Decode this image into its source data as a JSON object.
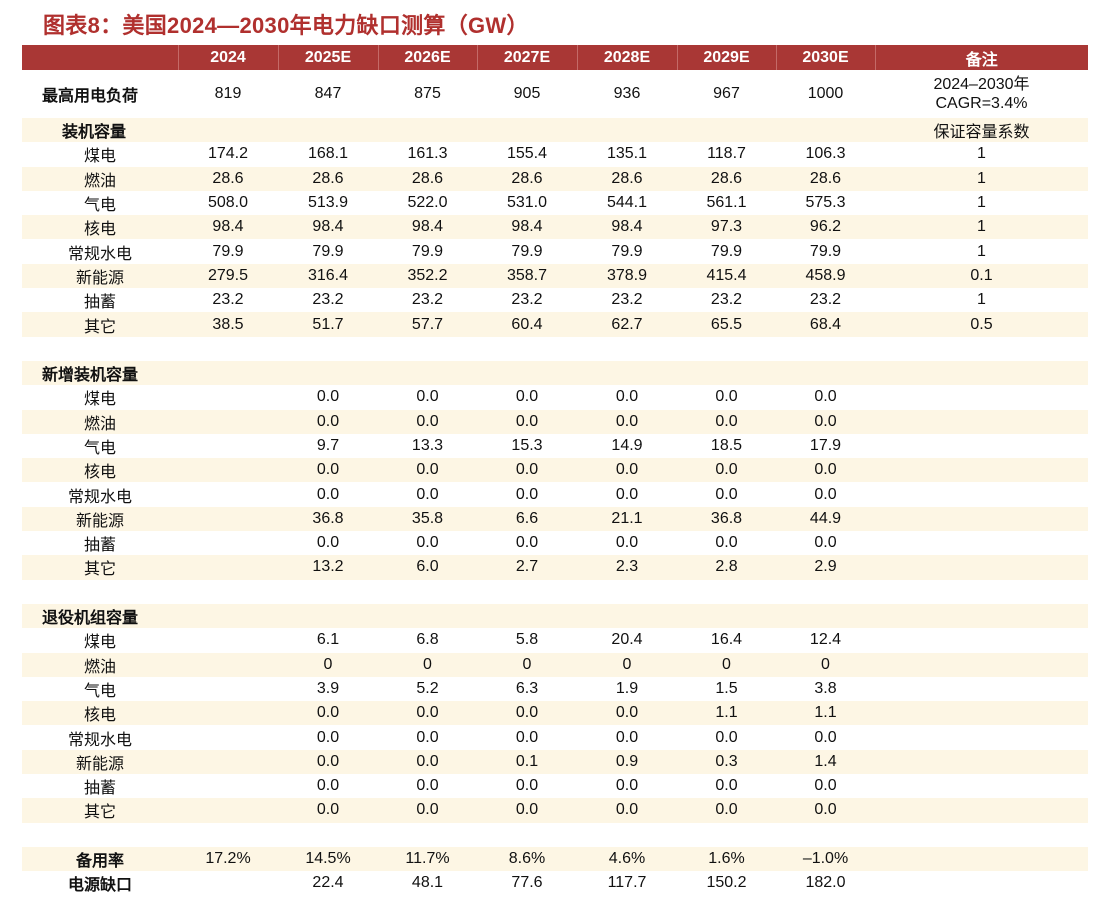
{
  "title": "图表8：美国2024—2030年电力缺口测算（GW）",
  "columns": [
    "",
    "2024",
    "2025E",
    "2026E",
    "2027E",
    "2028E",
    "2029E",
    "2030E",
    "备注"
  ],
  "max_load": {
    "label": "最高用电负荷",
    "values": [
      "819",
      "847",
      "875",
      "905",
      "936",
      "967",
      "1000"
    ],
    "note_line1": "2024–2030年",
    "note_line2": "CAGR=3.4%"
  },
  "installed": {
    "label": "装机容量",
    "note": "保证容量系数",
    "rows": [
      {
        "label": "煤电",
        "values": [
          "174.2",
          "168.1",
          "161.3",
          "155.4",
          "135.1",
          "118.7",
          "106.3"
        ],
        "note": "1"
      },
      {
        "label": "燃油",
        "values": [
          "28.6",
          "28.6",
          "28.6",
          "28.6",
          "28.6",
          "28.6",
          "28.6"
        ],
        "note": "1"
      },
      {
        "label": "气电",
        "values": [
          "508.0",
          "513.9",
          "522.0",
          "531.0",
          "544.1",
          "561.1",
          "575.3"
        ],
        "note": "1"
      },
      {
        "label": "核电",
        "values": [
          "98.4",
          "98.4",
          "98.4",
          "98.4",
          "98.4",
          "97.3",
          "96.2"
        ],
        "note": "1"
      },
      {
        "label": "常规水电",
        "values": [
          "79.9",
          "79.9",
          "79.9",
          "79.9",
          "79.9",
          "79.9",
          "79.9"
        ],
        "note": "1"
      },
      {
        "label": "新能源",
        "values": [
          "279.5",
          "316.4",
          "352.2",
          "358.7",
          "378.9",
          "415.4",
          "458.9"
        ],
        "note": "0.1"
      },
      {
        "label": "抽蓄",
        "values": [
          "23.2",
          "23.2",
          "23.2",
          "23.2",
          "23.2",
          "23.2",
          "23.2"
        ],
        "note": "1"
      },
      {
        "label": "其它",
        "values": [
          "38.5",
          "51.7",
          "57.7",
          "60.4",
          "62.7",
          "65.5",
          "68.4"
        ],
        "note": "0.5"
      }
    ]
  },
  "added": {
    "label": "新增装机容量",
    "rows": [
      {
        "label": "煤电",
        "values": [
          "",
          "0.0",
          "0.0",
          "0.0",
          "0.0",
          "0.0",
          "0.0"
        ]
      },
      {
        "label": "燃油",
        "values": [
          "",
          "0.0",
          "0.0",
          "0.0",
          "0.0",
          "0.0",
          "0.0"
        ]
      },
      {
        "label": "气电",
        "values": [
          "",
          "9.7",
          "13.3",
          "15.3",
          "14.9",
          "18.5",
          "17.9"
        ]
      },
      {
        "label": "核电",
        "values": [
          "",
          "0.0",
          "0.0",
          "0.0",
          "0.0",
          "0.0",
          "0.0"
        ]
      },
      {
        "label": "常规水电",
        "values": [
          "",
          "0.0",
          "0.0",
          "0.0",
          "0.0",
          "0.0",
          "0.0"
        ]
      },
      {
        "label": "新能源",
        "values": [
          "",
          "36.8",
          "35.8",
          "6.6",
          "21.1",
          "36.8",
          "44.9"
        ]
      },
      {
        "label": "抽蓄",
        "values": [
          "",
          "0.0",
          "0.0",
          "0.0",
          "0.0",
          "0.0",
          "0.0"
        ]
      },
      {
        "label": "其它",
        "values": [
          "",
          "13.2",
          "6.0",
          "2.7",
          "2.3",
          "2.8",
          "2.9"
        ]
      }
    ]
  },
  "retired": {
    "label": "退役机组容量",
    "rows": [
      {
        "label": "煤电",
        "values": [
          "",
          "6.1",
          "6.8",
          "5.8",
          "20.4",
          "16.4",
          "12.4"
        ]
      },
      {
        "label": "燃油",
        "values": [
          "",
          "0",
          "0",
          "0",
          "0",
          "0",
          "0"
        ]
      },
      {
        "label": "气电",
        "values": [
          "",
          "3.9",
          "5.2",
          "6.3",
          "1.9",
          "1.5",
          "3.8"
        ]
      },
      {
        "label": "核电",
        "values": [
          "",
          "0.0",
          "0.0",
          "0.0",
          "0.0",
          "1.1",
          "1.1"
        ]
      },
      {
        "label": "常规水电",
        "values": [
          "",
          "0.0",
          "0.0",
          "0.0",
          "0.0",
          "0.0",
          "0.0"
        ]
      },
      {
        "label": "新能源",
        "values": [
          "",
          "0.0",
          "0.0",
          "0.1",
          "0.9",
          "0.3",
          "1.4"
        ]
      },
      {
        "label": "抽蓄",
        "values": [
          "",
          "0.0",
          "0.0",
          "0.0",
          "0.0",
          "0.0",
          "0.0"
        ]
      },
      {
        "label": "其它",
        "values": [
          "",
          "0.0",
          "0.0",
          "0.0",
          "0.0",
          "0.0",
          "0.0"
        ]
      }
    ]
  },
  "reserve_rate": {
    "label": "备用率",
    "values": [
      "17.2%",
      "14.5%",
      "11.7%",
      "8.6%",
      "4.6%",
      "1.6%",
      "–1.0%"
    ]
  },
  "power_gap": {
    "label": "电源缺口",
    "values": [
      "",
      "22.4",
      "48.1",
      "77.6",
      "117.7",
      "150.2",
      "182.0"
    ]
  },
  "colors": {
    "header_bg": "#a93735",
    "title": "#b0302e",
    "stripe": "#fdf6e4"
  }
}
